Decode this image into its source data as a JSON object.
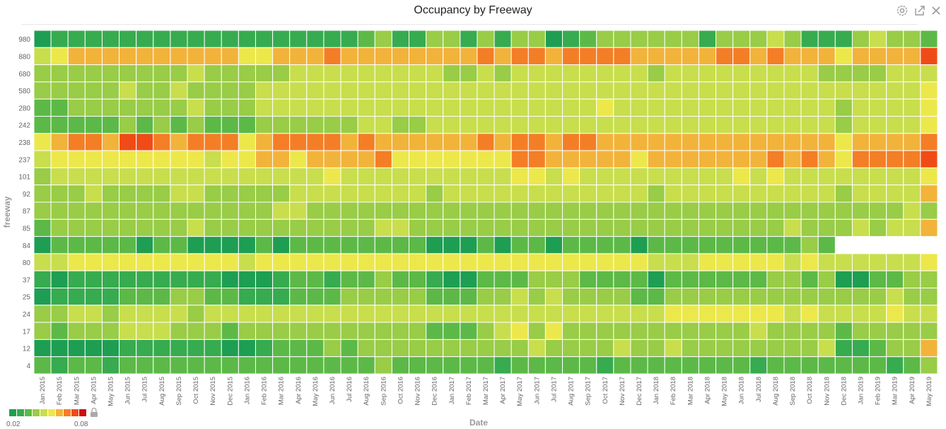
{
  "toolbar": {
    "settings_icon": "gear-icon",
    "export_icon": "export-icon",
    "close_icon": "close-icon"
  },
  "chart_data": {
    "type": "heatmap",
    "title": "Occupancy by Freeway",
    "xlabel": "Date",
    "ylabel": "freeway",
    "x": [
      "Jan 2015",
      "Feb 2015",
      "Mar 2015",
      "Apr 2015",
      "May 2015",
      "Jun 2015",
      "Jul 2015",
      "Aug 2015",
      "Sep 2015",
      "Oct 2015",
      "Nov 2015",
      "Dec 2015",
      "Jan 2016",
      "Feb 2016",
      "Mar 2016",
      "Apr 2016",
      "May 2016",
      "Jun 2016",
      "Jul 2016",
      "Aug 2016",
      "Sep 2016",
      "Oct 2016",
      "Nov 2016",
      "Dec 2016",
      "Jan 2017",
      "Feb 2017",
      "Mar 2017",
      "Apr 2017",
      "May 2017",
      "Jun 2017",
      "Jul 2017",
      "Aug 2017",
      "Sep 2017",
      "Oct 2017",
      "Nov 2017",
      "Dec 2017",
      "Jan 2018",
      "Feb 2018",
      "Mar 2018",
      "Apr 2018",
      "May 2018",
      "Jun 2018",
      "Jul 2018",
      "Aug 2018",
      "Sep 2018",
      "Oct 2018",
      "Nov 2018",
      "Dec 2018",
      "Jan 2019",
      "Feb 2019",
      "Mar 2019",
      "Apr 2019",
      "May 2019"
    ],
    "y": [
      "980",
      "880",
      "680",
      "580",
      "280",
      "242",
      "238",
      "237",
      "101",
      "92",
      "87",
      "85",
      "84",
      "80",
      "37",
      "25",
      "24",
      "17",
      "12",
      "4"
    ],
    "scale": {
      "min": 0.02,
      "max": 0.08,
      "colors": [
        "#1e9e52",
        "#37ab4f",
        "#5cb947",
        "#99cc47",
        "#c8de4d",
        "#ece84b",
        "#f2b33b",
        "#f47e26",
        "#f04b17",
        "#cc1010"
      ],
      "min_label": "0.02",
      "max_label": "0.08"
    },
    "legend": "bottom-left",
    "grid": true,
    "values": [
      [
        0.02,
        0.027,
        0.027,
        0.027,
        0.027,
        0.027,
        0.027,
        0.027,
        0.027,
        0.027,
        0.027,
        0.027,
        0.027,
        0.027,
        0.027,
        0.027,
        0.027,
        0.027,
        0.027,
        0.033,
        0.04,
        0.027,
        0.027,
        0.04,
        0.04,
        0.027,
        0.04,
        0.027,
        0.04,
        0.04,
        0.02,
        0.027,
        0.033,
        0.04,
        0.04,
        0.04,
        0.04,
        0.04,
        0.04,
        0.027,
        0.04,
        0.04,
        0.04,
        0.047,
        0.04,
        0.027,
        0.027,
        0.027,
        0.04,
        0.047,
        0.04,
        0.04,
        0.033
      ],
      [
        0.047,
        0.053,
        0.06,
        0.06,
        0.06,
        0.06,
        0.06,
        0.06,
        0.06,
        0.06,
        0.06,
        0.06,
        0.053,
        0.053,
        0.06,
        0.06,
        0.06,
        0.067,
        0.06,
        0.06,
        0.06,
        0.06,
        0.06,
        0.06,
        0.06,
        0.06,
        0.067,
        0.06,
        0.067,
        0.067,
        0.06,
        0.067,
        0.067,
        0.067,
        0.067,
        0.06,
        0.06,
        0.06,
        0.06,
        0.06,
        0.067,
        0.067,
        0.06,
        0.067,
        0.06,
        0.06,
        0.06,
        0.053,
        0.06,
        0.06,
        0.06,
        0.06,
        0.073
      ],
      [
        0.04,
        0.04,
        0.04,
        0.04,
        0.04,
        0.04,
        0.04,
        0.04,
        0.04,
        0.047,
        0.04,
        0.04,
        0.04,
        0.04,
        0.04,
        0.047,
        0.047,
        0.047,
        0.047,
        0.047,
        0.047,
        0.047,
        0.047,
        0.047,
        0.04,
        0.04,
        0.047,
        0.04,
        0.047,
        0.047,
        0.047,
        0.047,
        0.047,
        0.047,
        0.047,
        0.047,
        0.04,
        0.047,
        0.047,
        0.047,
        0.047,
        0.047,
        0.047,
        0.047,
        0.047,
        0.047,
        0.04,
        0.04,
        0.04,
        0.04,
        0.047,
        0.047,
        0.047
      ],
      [
        0.04,
        0.04,
        0.04,
        0.04,
        0.04,
        0.047,
        0.04,
        0.04,
        0.047,
        0.04,
        0.04,
        0.04,
        0.04,
        0.047,
        0.047,
        0.047,
        0.047,
        0.047,
        0.047,
        0.047,
        0.047,
        0.047,
        0.047,
        0.047,
        0.047,
        0.047,
        0.047,
        0.047,
        0.047,
        0.047,
        0.047,
        0.047,
        0.047,
        0.047,
        0.047,
        0.047,
        0.047,
        0.047,
        0.047,
        0.047,
        0.047,
        0.047,
        0.047,
        0.047,
        0.047,
        0.047,
        0.047,
        0.047,
        0.047,
        0.047,
        0.047,
        0.047,
        0.053
      ],
      [
        0.033,
        0.033,
        0.04,
        0.04,
        0.04,
        0.04,
        0.04,
        0.04,
        0.04,
        0.047,
        0.04,
        0.04,
        0.04,
        0.047,
        0.047,
        0.047,
        0.047,
        0.047,
        0.047,
        0.047,
        0.047,
        0.047,
        0.047,
        0.047,
        0.047,
        0.047,
        0.047,
        0.047,
        0.047,
        0.047,
        0.047,
        0.047,
        0.047,
        0.053,
        0.047,
        0.047,
        0.047,
        0.047,
        0.047,
        0.047,
        0.047,
        0.047,
        0.047,
        0.047,
        0.047,
        0.047,
        0.047,
        0.04,
        0.047,
        0.047,
        0.047,
        0.047,
        0.053
      ],
      [
        0.033,
        0.033,
        0.033,
        0.033,
        0.033,
        0.04,
        0.033,
        0.04,
        0.033,
        0.04,
        0.033,
        0.033,
        0.033,
        0.04,
        0.04,
        0.04,
        0.04,
        0.04,
        0.04,
        0.047,
        0.047,
        0.04,
        0.04,
        0.047,
        0.047,
        0.047,
        0.047,
        0.047,
        0.047,
        0.047,
        0.047,
        0.047,
        0.047,
        0.047,
        0.047,
        0.047,
        0.047,
        0.047,
        0.047,
        0.047,
        0.047,
        0.047,
        0.047,
        0.047,
        0.047,
        0.047,
        0.047,
        0.04,
        0.047,
        0.047,
        0.047,
        0.047,
        0.053
      ],
      [
        0.053,
        0.06,
        0.067,
        0.067,
        0.06,
        0.073,
        0.073,
        0.067,
        0.06,
        0.067,
        0.067,
        0.067,
        0.053,
        0.06,
        0.067,
        0.067,
        0.067,
        0.067,
        0.06,
        0.067,
        0.06,
        0.06,
        0.06,
        0.06,
        0.06,
        0.06,
        0.067,
        0.06,
        0.067,
        0.067,
        0.06,
        0.067,
        0.067,
        0.06,
        0.06,
        0.06,
        0.06,
        0.06,
        0.06,
        0.06,
        0.06,
        0.06,
        0.06,
        0.06,
        0.06,
        0.06,
        0.06,
        0.053,
        0.06,
        0.06,
        0.06,
        0.06,
        0.067
      ],
      [
        0.047,
        0.053,
        0.053,
        0.053,
        0.053,
        0.053,
        0.053,
        0.053,
        0.053,
        0.053,
        0.047,
        0.053,
        0.053,
        0.06,
        0.06,
        0.053,
        0.06,
        0.06,
        0.06,
        0.06,
        0.067,
        0.053,
        0.053,
        0.053,
        0.053,
        0.053,
        0.053,
        0.053,
        0.067,
        0.067,
        0.06,
        0.06,
        0.06,
        0.06,
        0.06,
        0.053,
        0.06,
        0.06,
        0.06,
        0.06,
        0.06,
        0.06,
        0.06,
        0.067,
        0.06,
        0.067,
        0.06,
        0.053,
        0.067,
        0.067,
        0.067,
        0.067,
        0.073
      ],
      [
        0.04,
        0.047,
        0.047,
        0.047,
        0.047,
        0.047,
        0.047,
        0.047,
        0.047,
        0.047,
        0.047,
        0.047,
        0.047,
        0.047,
        0.047,
        0.047,
        0.047,
        0.053,
        0.047,
        0.047,
        0.047,
        0.047,
        0.047,
        0.047,
        0.047,
        0.047,
        0.047,
        0.047,
        0.053,
        0.053,
        0.047,
        0.053,
        0.047,
        0.047,
        0.047,
        0.047,
        0.047,
        0.047,
        0.047,
        0.047,
        0.047,
        0.053,
        0.047,
        0.053,
        0.047,
        0.047,
        0.047,
        0.047,
        0.047,
        0.047,
        0.047,
        0.047,
        0.053
      ],
      [
        0.04,
        0.04,
        0.04,
        0.047,
        0.04,
        0.04,
        0.04,
        0.04,
        0.047,
        0.047,
        0.04,
        0.04,
        0.04,
        0.04,
        0.04,
        0.047,
        0.047,
        0.047,
        0.047,
        0.047,
        0.047,
        0.047,
        0.047,
        0.04,
        0.047,
        0.047,
        0.047,
        0.047,
        0.047,
        0.047,
        0.047,
        0.047,
        0.047,
        0.047,
        0.047,
        0.047,
        0.04,
        0.047,
        0.047,
        0.047,
        0.047,
        0.047,
        0.047,
        0.047,
        0.047,
        0.047,
        0.047,
        0.04,
        0.047,
        0.047,
        0.047,
        0.047,
        0.06
      ],
      [
        0.04,
        0.04,
        0.04,
        0.04,
        0.04,
        0.04,
        0.04,
        0.04,
        0.04,
        0.04,
        0.04,
        0.04,
        0.04,
        0.04,
        0.047,
        0.047,
        0.04,
        0.04,
        0.04,
        0.04,
        0.04,
        0.04,
        0.04,
        0.04,
        0.04,
        0.04,
        0.04,
        0.04,
        0.04,
        0.04,
        0.04,
        0.04,
        0.04,
        0.04,
        0.04,
        0.04,
        0.04,
        0.04,
        0.04,
        0.04,
        0.04,
        0.04,
        0.04,
        0.04,
        0.04,
        0.04,
        0.04,
        0.04,
        0.04,
        0.04,
        0.04,
        0.047,
        0.04
      ],
      [
        0.033,
        0.04,
        0.04,
        0.04,
        0.04,
        0.04,
        0.04,
        0.04,
        0.04,
        0.047,
        0.04,
        0.04,
        0.04,
        0.04,
        0.04,
        0.04,
        0.04,
        0.04,
        0.04,
        0.04,
        0.047,
        0.047,
        0.04,
        0.04,
        0.04,
        0.04,
        0.04,
        0.04,
        0.04,
        0.04,
        0.04,
        0.04,
        0.04,
        0.04,
        0.04,
        0.04,
        0.04,
        0.04,
        0.04,
        0.04,
        0.04,
        0.04,
        0.04,
        0.04,
        0.047,
        0.04,
        0.04,
        0.04,
        0.047,
        0.04,
        0.047,
        0.047,
        0.06
      ],
      [
        0.02,
        0.033,
        0.033,
        0.033,
        0.033,
        0.033,
        0.02,
        0.033,
        0.033,
        0.02,
        0.02,
        0.02,
        0.02,
        0.033,
        0.02,
        0.033,
        0.033,
        0.033,
        0.033,
        0.033,
        0.033,
        0.033,
        0.033,
        0.02,
        0.02,
        0.02,
        0.033,
        0.02,
        0.033,
        0.033,
        0.02,
        0.033,
        0.033,
        0.033,
        0.033,
        0.02,
        0.033,
        0.033,
        0.033,
        0.033,
        0.033,
        0.033,
        0.033,
        0.033,
        0.033,
        0.04,
        0.033,
        null,
        null,
        null,
        null,
        null,
        null
      ],
      [
        0.047,
        0.047,
        0.053,
        0.053,
        0.053,
        0.053,
        0.053,
        0.053,
        0.053,
        0.053,
        0.053,
        0.053,
        0.047,
        0.053,
        0.053,
        0.053,
        0.053,
        0.053,
        0.053,
        0.053,
        0.053,
        0.053,
        0.053,
        0.053,
        0.053,
        0.053,
        0.053,
        0.053,
        0.053,
        0.053,
        0.053,
        0.053,
        0.053,
        0.053,
        0.053,
        0.053,
        0.047,
        0.047,
        0.047,
        0.053,
        0.053,
        0.053,
        0.053,
        0.053,
        0.047,
        0.053,
        0.047,
        0.047,
        0.047,
        0.047,
        0.047,
        0.047,
        0.053
      ],
      [
        0.027,
        0.02,
        0.027,
        0.027,
        0.027,
        0.027,
        0.027,
        0.027,
        0.027,
        0.027,
        0.027,
        0.02,
        0.02,
        0.02,
        0.027,
        0.033,
        0.033,
        0.027,
        0.033,
        0.033,
        0.04,
        0.033,
        0.033,
        0.027,
        0.02,
        0.02,
        0.033,
        0.033,
        0.033,
        0.04,
        0.04,
        0.04,
        0.033,
        0.033,
        0.033,
        0.033,
        0.02,
        0.033,
        0.033,
        0.033,
        0.033,
        0.033,
        0.033,
        0.04,
        0.04,
        0.033,
        0.04,
        0.02,
        0.02,
        0.033,
        0.033,
        0.04,
        0.04
      ],
      [
        0.02,
        0.027,
        0.027,
        0.027,
        0.027,
        0.033,
        0.033,
        0.033,
        0.04,
        0.04,
        0.033,
        0.033,
        0.027,
        0.027,
        0.027,
        0.033,
        0.033,
        0.033,
        0.04,
        0.04,
        0.04,
        0.04,
        0.04,
        0.033,
        0.033,
        0.033,
        0.04,
        0.04,
        0.047,
        0.04,
        0.047,
        0.04,
        0.04,
        0.04,
        0.04,
        0.033,
        0.033,
        0.04,
        0.04,
        0.04,
        0.04,
        0.04,
        0.04,
        0.04,
        0.04,
        0.04,
        0.04,
        0.04,
        0.04,
        0.04,
        0.047,
        0.04,
        0.04
      ],
      [
        0.04,
        0.04,
        0.047,
        0.047,
        0.04,
        0.047,
        0.047,
        0.047,
        0.047,
        0.04,
        0.047,
        0.047,
        0.047,
        0.047,
        0.047,
        0.047,
        0.047,
        0.047,
        0.047,
        0.047,
        0.047,
        0.047,
        0.047,
        0.047,
        0.047,
        0.047,
        0.047,
        0.047,
        0.047,
        0.047,
        0.047,
        0.047,
        0.047,
        0.047,
        0.047,
        0.047,
        0.047,
        0.053,
        0.053,
        0.053,
        0.053,
        0.053,
        0.053,
        0.053,
        0.047,
        0.053,
        0.047,
        0.047,
        0.047,
        0.047,
        0.053,
        0.047,
        0.047
      ],
      [
        0.04,
        0.033,
        0.04,
        0.04,
        0.04,
        0.047,
        0.047,
        0.047,
        0.04,
        0.04,
        0.04,
        0.033,
        0.04,
        0.04,
        0.04,
        0.04,
        0.04,
        0.04,
        0.04,
        0.04,
        0.04,
        0.04,
        0.04,
        0.033,
        0.033,
        0.033,
        0.04,
        0.047,
        0.053,
        0.04,
        0.053,
        0.04,
        0.04,
        0.04,
        0.04,
        0.04,
        0.04,
        0.04,
        0.04,
        0.04,
        0.04,
        0.04,
        0.047,
        0.04,
        0.04,
        0.04,
        0.04,
        0.033,
        0.04,
        0.04,
        0.04,
        0.04,
        0.04
      ],
      [
        0.02,
        0.02,
        0.02,
        0.02,
        0.02,
        0.027,
        0.027,
        0.027,
        0.027,
        0.027,
        0.027,
        0.02,
        0.02,
        0.027,
        0.033,
        0.033,
        0.033,
        0.04,
        0.033,
        0.04,
        0.04,
        0.04,
        0.04,
        0.04,
        0.04,
        0.04,
        0.04,
        0.04,
        0.04,
        0.047,
        0.04,
        0.04,
        0.04,
        0.04,
        0.047,
        0.04,
        0.04,
        0.047,
        0.04,
        0.04,
        0.04,
        0.04,
        0.04,
        0.04,
        0.04,
        0.04,
        0.047,
        0.027,
        0.027,
        0.033,
        0.04,
        0.04,
        0.06
      ],
      [
        0.033,
        0.027,
        0.033,
        0.033,
        0.027,
        0.033,
        0.033,
        0.033,
        0.033,
        0.033,
        0.033,
        0.033,
        0.033,
        0.033,
        0.033,
        0.033,
        0.033,
        0.033,
        0.033,
        0.033,
        0.04,
        0.033,
        0.033,
        0.033,
        0.033,
        0.033,
        0.033,
        0.027,
        0.033,
        0.033,
        0.033,
        0.033,
        0.033,
        0.027,
        0.033,
        0.033,
        0.033,
        0.033,
        0.033,
        0.033,
        0.033,
        0.033,
        0.027,
        0.033,
        0.033,
        0.033,
        0.033,
        0.033,
        0.033,
        0.033,
        0.027,
        0.033,
        0.04
      ]
    ]
  }
}
